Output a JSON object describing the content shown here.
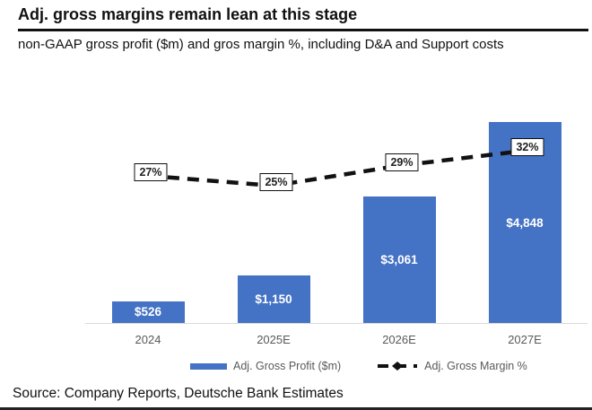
{
  "header": {
    "title": "Adj. gross margins remain lean at this stage",
    "subtitle": "non-GAAP gross profit ($m) and gros margin %, including D&A and Support costs"
  },
  "chart_data": {
    "type": "bar",
    "categories": [
      "2024",
      "2025E",
      "2026E",
      "2027E"
    ],
    "series": [
      {
        "name": "Adj. Gross Profit ($m)",
        "kind": "bar",
        "values": [
          526,
          1150,
          3061,
          4848
        ],
        "labels": [
          "$526",
          "$1,150",
          "$3,061",
          "$4,848"
        ],
        "color": "#4472C4",
        "label_color": "#FFFFFF"
      },
      {
        "name": "Adj. Gross Margin %",
        "kind": "line",
        "values": [
          27,
          25,
          29,
          32
        ],
        "labels": [
          "27%",
          "25%",
          "29%",
          "32%"
        ],
        "color": "#111111",
        "style": "dashed",
        "marker": "diamond"
      }
    ],
    "title": "Adj. gross margins remain lean at this stage",
    "xlabel": "",
    "ylabel": "",
    "grid": false,
    "legend_position": "bottom",
    "axis_line_color": "#D9D9D9",
    "tick_label_color": "#595959"
  },
  "legend": {
    "bar_label": "Adj. Gross Profit ($m)",
    "line_label": "Adj. Gross Margin %"
  },
  "footer": {
    "source": "Source: Company Reports, Deutsche Bank Estimates"
  }
}
